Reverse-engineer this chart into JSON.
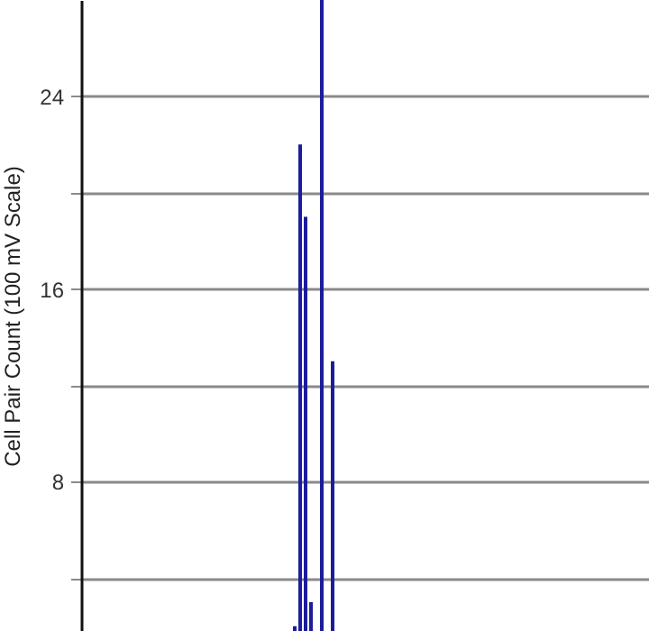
{
  "chart_data": {
    "type": "bar",
    "ylabel": "Cell Pair Count (100 mV Scale)",
    "categories": [
      null,
      null,
      null,
      null,
      null,
      null,
      null,
      null,
      null,
      null,
      null,
      null,
      null,
      null,
      null,
      null,
      null,
      null,
      null,
      null,
      null,
      null,
      null,
      null,
      null,
      null,
      null,
      null,
      null,
      null,
      null,
      null,
      null,
      null,
      null,
      null,
      null,
      null,
      null,
      null,
      null,
      null,
      null,
      null,
      null,
      null,
      null,
      null,
      null,
      null,
      null,
      null,
      null,
      null,
      null,
      null,
      null,
      null,
      null,
      null,
      null,
      null,
      null,
      null,
      null,
      null,
      null,
      null,
      null,
      null,
      null,
      null,
      null,
      null,
      null,
      null,
      null,
      null,
      null,
      null,
      null,
      null,
      null,
      null,
      null,
      null,
      null,
      null,
      null,
      null,
      null,
      null,
      null,
      null,
      null,
      null,
      null,
      null,
      null,
      null,
      null,
      null,
      null,
      null,
      null
    ],
    "values": [
      null,
      null,
      null,
      null,
      null,
      null,
      null,
      null,
      null,
      null,
      null,
      null,
      null,
      null,
      null,
      null,
      null,
      null,
      null,
      null,
      null,
      null,
      null,
      null,
      null,
      null,
      null,
      null,
      null,
      null,
      null,
      null,
      null,
      null,
      null,
      null,
      null,
      null,
      null,
      2,
      22,
      19,
      3,
      null,
      28,
      null,
      13,
      null,
      null,
      null,
      null,
      null,
      null,
      null,
      null,
      null,
      null,
      null,
      null,
      null,
      null,
      null,
      null,
      null,
      null,
      null,
      null,
      null,
      null,
      null,
      null,
      null,
      null,
      null,
      null,
      null,
      null,
      null,
      null,
      null,
      null,
      null,
      null,
      null,
      null,
      null,
      null,
      null,
      null,
      null,
      null,
      null,
      null,
      null,
      null,
      null,
      null,
      null,
      null,
      null,
      null,
      null,
      null,
      null,
      null
    ],
    "color": "#1c1c9c",
    "ylim": [
      1.8,
      28
    ],
    "yticks": [
      {
        "value": 4,
        "label": null
      },
      8,
      {
        "value": 12,
        "label": null
      },
      16,
      {
        "value": 20,
        "label": null
      },
      24
    ],
    "grid": "y",
    "tick_labels": "y"
  }
}
